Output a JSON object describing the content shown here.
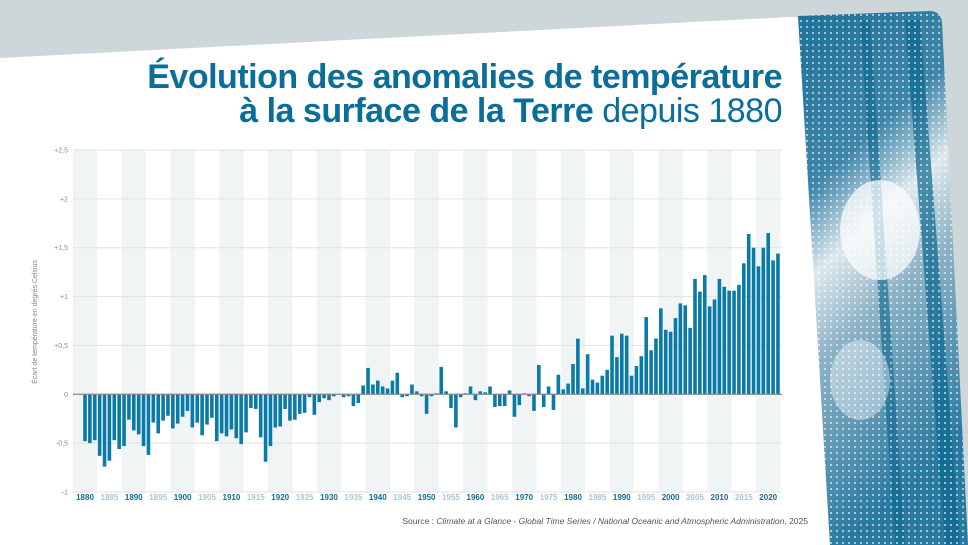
{
  "title": {
    "line1": "Évolution des anomalies de température",
    "line2_bold": "à la surface de la Terre",
    "line2_light": " depuis 1880"
  },
  "source": {
    "prefix": "Source : ",
    "title": "Climate at a Glance - Global Time Series / National Oceanic and Atmospheric Administration",
    "suffix": ", 2025"
  },
  "colors": {
    "bar": "#0a7aa8",
    "title": "#0b6e9a",
    "label_dark": "#0a6f9c",
    "label_light": "#a9c6d6",
    "band": "#f0f4f5",
    "background": "#cdd7d9"
  },
  "chart_data": {
    "type": "bar",
    "ylabel": "Écart de température en degrés Celsius",
    "ylim": [
      -1,
      2.5
    ],
    "yticks": [
      "+2,5",
      "+2",
      "+1,5",
      "+1",
      "+0,5",
      "0",
      "-0,5",
      "-1"
    ],
    "ytick_values": [
      2.5,
      2,
      1.5,
      1,
      0.5,
      0,
      -0.5,
      -1
    ],
    "xticks": [
      1880,
      1885,
      1890,
      1895,
      1900,
      1905,
      1910,
      1915,
      1920,
      1925,
      1930,
      1935,
      1940,
      1945,
      1950,
      1955,
      1960,
      1965,
      1970,
      1975,
      1980,
      1985,
      1990,
      1995,
      2000,
      2005,
      2010,
      2015,
      2020
    ],
    "grid": true,
    "start_year": 1880,
    "end_year": 2022,
    "values": [
      -0.48,
      -0.5,
      -0.47,
      -0.63,
      -0.74,
      -0.68,
      -0.47,
      -0.56,
      -0.53,
      -0.26,
      -0.37,
      -0.41,
      -0.53,
      -0.62,
      -0.29,
      -0.4,
      -0.27,
      -0.22,
      -0.35,
      -0.3,
      -0.23,
      -0.17,
      -0.34,
      -0.29,
      -0.42,
      -0.31,
      -0.24,
      -0.48,
      -0.4,
      -0.43,
      -0.36,
      -0.45,
      -0.51,
      -0.39,
      -0.14,
      -0.15,
      -0.44,
      -0.69,
      -0.53,
      -0.34,
      -0.33,
      -0.15,
      -0.27,
      -0.26,
      -0.2,
      -0.19,
      -0.03,
      -0.21,
      -0.08,
      -0.04,
      -0.06,
      -0.02,
      0.0,
      -0.03,
      -0.02,
      -0.12,
      -0.09,
      0.09,
      0.27,
      0.1,
      0.14,
      0.08,
      0.06,
      0.14,
      0.22,
      -0.03,
      -0.02,
      0.1,
      0.03,
      -0.02,
      -0.2,
      -0.02,
      0.01,
      0.28,
      0.03,
      -0.14,
      -0.34,
      -0.03,
      0.01,
      0.08,
      -0.06,
      0.03,
      0.02,
      0.08,
      -0.13,
      -0.12,
      -0.12,
      0.04,
      -0.23,
      -0.11,
      0.01,
      -0.02,
      -0.17,
      0.3,
      -0.13,
      0.08,
      -0.16,
      0.2,
      0.05,
      0.11,
      0.31,
      0.57,
      0.06,
      0.41,
      0.15,
      0.12,
      0.19,
      0.25,
      0.6,
      0.38,
      0.62,
      0.6,
      0.19,
      0.29,
      0.39,
      0.79,
      0.45,
      0.57,
      0.88,
      0.66,
      0.64,
      0.78,
      0.93,
      0.91,
      0.68,
      1.18,
      1.05,
      1.22,
      0.9,
      0.97,
      1.18,
      1.1,
      1.06,
      1.06,
      1.12,
      1.34,
      1.64,
      1.5,
      1.31,
      1.5,
      1.65,
      1.37,
      1.44
    ]
  }
}
